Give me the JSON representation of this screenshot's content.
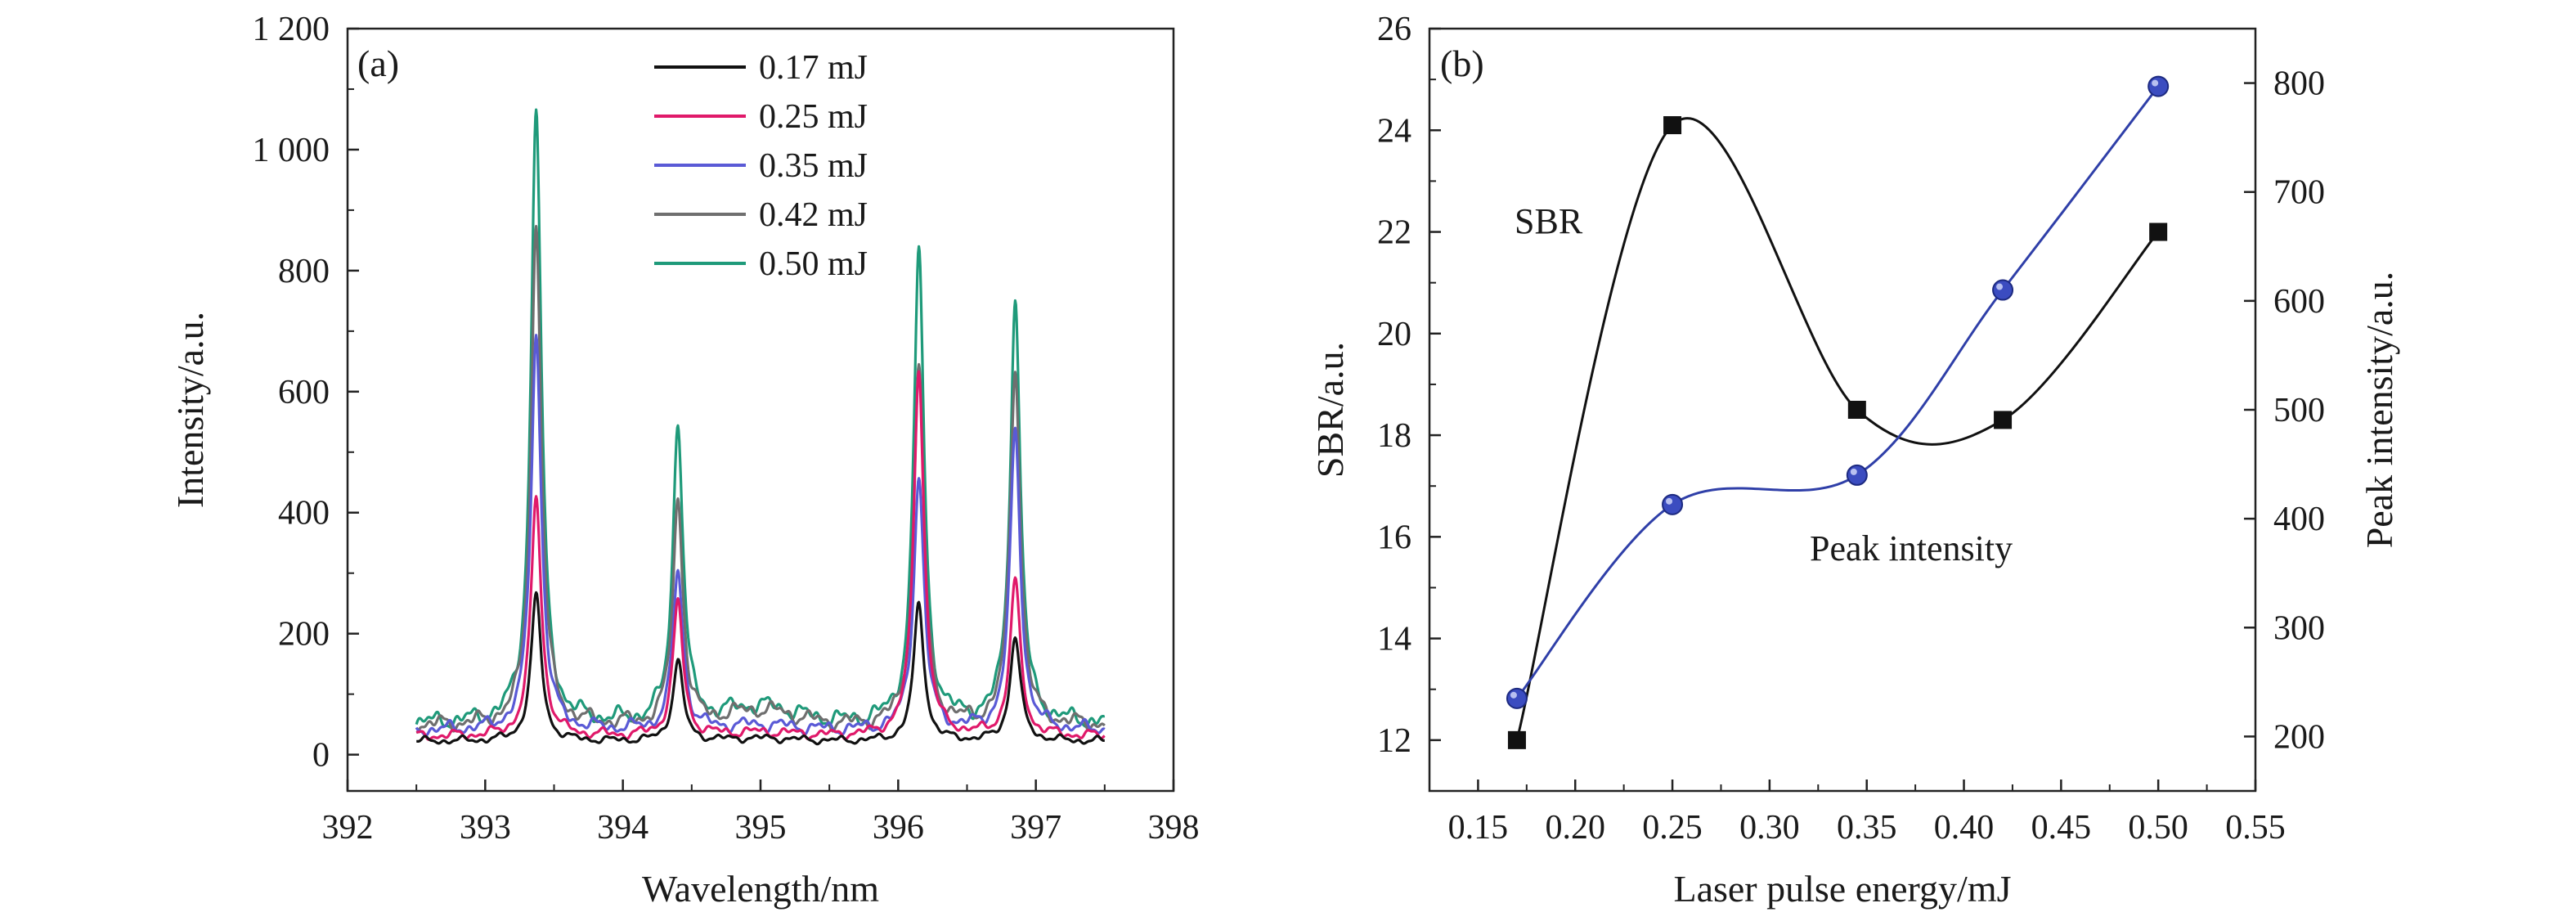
{
  "chart_data": [
    {
      "type": "line",
      "panel_label": "(a)",
      "xlabel": "Wavelength/nm",
      "ylabel": "Intensity/a.u.",
      "xlim": [
        392,
        398
      ],
      "ylim": [
        -60,
        1200
      ],
      "xticks": [
        392,
        393,
        394,
        395,
        396,
        397,
        398
      ],
      "xtick_labels": [
        "392",
        "393",
        "394",
        "395",
        "396",
        "397",
        "398"
      ],
      "yticks": [
        0,
        200,
        400,
        600,
        800,
        1000,
        1200
      ],
      "ytick_labels": [
        "0",
        "200",
        "400",
        "600",
        "800",
        "1 000",
        "1 200"
      ],
      "legend_position": "top-center",
      "peak_positions": [
        393.37,
        394.4,
        396.15,
        396.85
      ],
      "series": [
        {
          "name": "0.17 mJ",
          "color": "#111111",
          "baseline": 22,
          "peaks": [
            262,
            155,
            248,
            195
          ]
        },
        {
          "name": "0.25 mJ",
          "color": "#e0196a",
          "baseline": 30,
          "peaks": [
            425,
            250,
            640,
            285
          ]
        },
        {
          "name": "0.35 mJ",
          "color": "#5a5ad6",
          "baseline": 40,
          "peaks": [
            695,
            300,
            460,
            535
          ]
        },
        {
          "name": "0.42 mJ",
          "color": "#6f6f6f",
          "baseline": 48,
          "peaks": [
            875,
            420,
            640,
            640
          ]
        },
        {
          "name": "0.50 mJ",
          "color": "#1f9a7a",
          "baseline": 52,
          "peaks": [
            1070,
            550,
            832,
            748
          ]
        }
      ]
    },
    {
      "type": "line",
      "panel_label": "(b)",
      "xlabel": "Laser pulse energy/mJ",
      "ylabel": "SBR/a.u.",
      "y2label": "Peak intensity/a.u.",
      "xlim": [
        0.125,
        0.55
      ],
      "ylim": [
        11,
        26
      ],
      "y2lim": [
        150,
        850
      ],
      "xticks": [
        0.15,
        0.2,
        0.25,
        0.3,
        0.35,
        0.4,
        0.45,
        0.5,
        0.55
      ],
      "xtick_labels": [
        "0.15",
        "0.20",
        "0.25",
        "0.30",
        "0.35",
        "0.40",
        "0.45",
        "0.50",
        "0.55"
      ],
      "yticks": [
        12,
        14,
        16,
        18,
        20,
        22,
        24,
        26
      ],
      "ytick_labels": [
        "12",
        "14",
        "16",
        "18",
        "20",
        "22",
        "24",
        "26"
      ],
      "y2ticks": [
        200,
        300,
        400,
        500,
        600,
        700,
        800
      ],
      "y2tick_labels": [
        "200",
        "300",
        "400",
        "500",
        "600",
        "700",
        "800"
      ],
      "annotations": [
        "SBR",
        "Peak intensity"
      ],
      "series": [
        {
          "name": "SBR",
          "axis": "left",
          "color": "#111111",
          "marker": "square",
          "x": [
            0.17,
            0.25,
            0.345,
            0.42,
            0.5
          ],
          "y": [
            12,
            24.1,
            18.5,
            18.3,
            22
          ]
        },
        {
          "name": "Peak intensity",
          "axis": "right",
          "color": "#2f3fa8",
          "marker": "circle",
          "x": [
            0.17,
            0.25,
            0.345,
            0.42,
            0.5
          ],
          "y": [
            235,
            413,
            440,
            610,
            797
          ]
        }
      ]
    }
  ]
}
